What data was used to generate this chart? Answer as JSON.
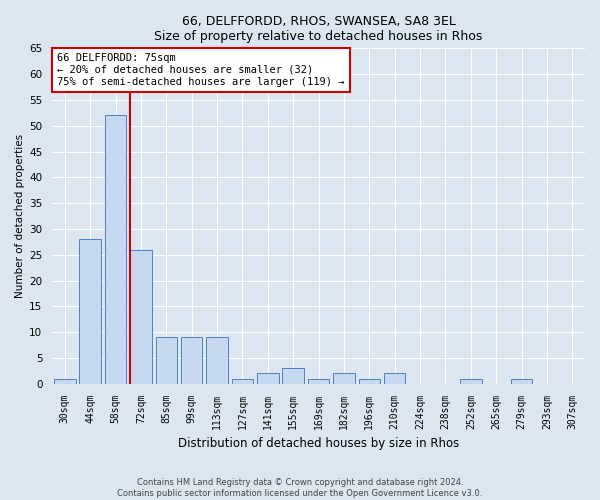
{
  "title1": "66, DELFFORDD, RHOS, SWANSEA, SA8 3EL",
  "title2": "Size of property relative to detached houses in Rhos",
  "xlabel": "Distribution of detached houses by size in Rhos",
  "ylabel": "Number of detached properties",
  "categories": [
    "30sqm",
    "44sqm",
    "58sqm",
    "72sqm",
    "85sqm",
    "99sqm",
    "113sqm",
    "127sqm",
    "141sqm",
    "155sqm",
    "169sqm",
    "182sqm",
    "196sqm",
    "210sqm",
    "224sqm",
    "238sqm",
    "252sqm",
    "265sqm",
    "279sqm",
    "293sqm",
    "307sqm"
  ],
  "values": [
    1,
    28,
    52,
    26,
    9,
    9,
    9,
    1,
    2,
    3,
    1,
    2,
    1,
    2,
    0,
    0,
    1,
    0,
    1,
    0,
    0
  ],
  "bar_color": "#c6d9f0",
  "bar_edge_color": "#4f81bd",
  "vline_color": "#cc0000",
  "annotation_title": "66 DELFFORDD: 75sqm",
  "annotation_line2": "← 20% of detached houses are smaller (32)",
  "annotation_line3": "75% of semi-detached houses are larger (119) →",
  "annotation_box_color": "#cc0000",
  "ylim": [
    0,
    65
  ],
  "yticks": [
    0,
    5,
    10,
    15,
    20,
    25,
    30,
    35,
    40,
    45,
    50,
    55,
    60,
    65
  ],
  "footer1": "Contains HM Land Registry data © Crown copyright and database right 2024.",
  "footer2": "Contains public sector information licensed under the Open Government Licence v3.0.",
  "background_color": "#dce6f1",
  "plot_bg_color": "#dce6f1",
  "grid_color": "#ffffff"
}
